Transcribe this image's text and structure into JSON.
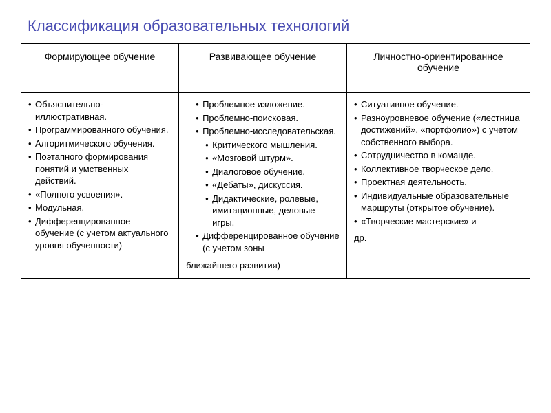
{
  "title": "Классификация образовательных технологий",
  "table": {
    "columns": [
      "Формирующее обучение",
      "Развивающее обучение",
      "Личностно-ориентированное обучение"
    ],
    "column_widths": [
      "31%",
      "33%",
      "36%"
    ],
    "cells": {
      "col1": {
        "items": [
          {
            "text": "Объяснительно-иллюстративная.",
            "indent": 0
          },
          {
            "text": "Программированного обучения.",
            "indent": 0
          },
          {
            "text": "Алгоритмического обучения.",
            "indent": 0
          },
          {
            "text": "Поэтапного формирования понятий и умственных действий.",
            "indent": 0
          },
          {
            "text": "«Полного усвоения».",
            "indent": 0
          },
          {
            "text": "Модульная.",
            "indent": 0
          },
          {
            "text": "Дифференцированное обучение (с учетом актуального уровня обученности)",
            "indent": 0
          }
        ],
        "trailing": ""
      },
      "col2": {
        "items": [
          {
            "text": "Проблемное изложение.",
            "indent": 1
          },
          {
            "text": "Проблемно-поисковая.",
            "indent": 1
          },
          {
            "text": "Проблемно-исследовательская.",
            "indent": 1
          },
          {
            "text": "Критического мышления.",
            "indent": 2
          },
          {
            "text": "«Мозговой штурм».",
            "indent": 2
          },
          {
            "text": "Диалоговое обучение.",
            "indent": 2
          },
          {
            "text": "«Дебаты», дискуссия.",
            "indent": 2
          },
          {
            "text": "Дидактические, ролевые, имитационные, деловые игры.",
            "indent": 2
          },
          {
            "text": "Дифференцированное обучение (с учетом зоны",
            "indent": 1
          }
        ],
        "trailing": "ближайшего развития)"
      },
      "col3": {
        "items": [
          {
            "text": "Ситуативное обучение.",
            "indent": 0
          },
          {
            "text": "Разноуровневое обучение («лестница достижений», «портфолио») с учетом собственного выбора.",
            "indent": 0
          },
          {
            "text": "Сотрудничество в команде.",
            "indent": 0
          },
          {
            "text": "Коллективное творческое дело.",
            "indent": 0
          },
          {
            "text": "Проектная деятельность.",
            "indent": 0
          },
          {
            "text": "Индивидуальные образовательные маршруты (открытое обучение).",
            "indent": 0
          },
          {
            "text": "«Творческие мастерские» и",
            "indent": 0
          }
        ],
        "trailing": "др."
      }
    }
  },
  "style": {
    "title_color": "#4a4db3",
    "border_color": "#000000",
    "background": "#ffffff",
    "body_font_size": 13,
    "header_font_size": 14
  }
}
